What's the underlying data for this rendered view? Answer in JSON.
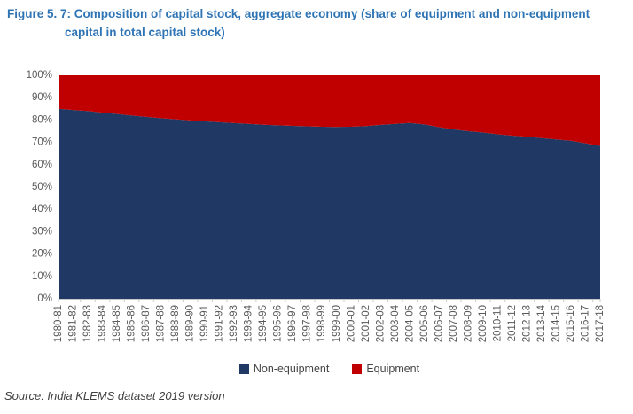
{
  "title": "Figure 5. 7: Composition of capital stock, aggregate economy (share of equipment and non-equipment capital in total capital stock)",
  "source": "Source: India KLEMS dataset 2019 version",
  "colors": {
    "title_blue": "#2E74B5",
    "non_equipment": "#1F3864",
    "equipment": "#C00000",
    "axis_text": "#595959",
    "axis_line": "#C9C9C9",
    "legend_text": "#444444"
  },
  "legend": {
    "items": [
      {
        "label": "Non-equipment",
        "color": "#1F3864"
      },
      {
        "label": "Equipment",
        "color": "#C00000"
      }
    ]
  },
  "chart_data": {
    "type": "area",
    "stacked": true,
    "stack_total": 100,
    "title": "Composition of capital stock, aggregate economy",
    "xlabel": "",
    "ylabel": "",
    "ylim": [
      0,
      100
    ],
    "grid": false,
    "legend_position": "bottom",
    "y_ticks": [
      "0%",
      "10%",
      "20%",
      "30%",
      "40%",
      "50%",
      "60%",
      "70%",
      "80%",
      "90%",
      "100%"
    ],
    "y_tick_values": [
      0,
      10,
      20,
      30,
      40,
      50,
      60,
      70,
      80,
      90,
      100
    ],
    "categories": [
      "1980-81",
      "1981-82",
      "1982-83",
      "1983-84",
      "1984-85",
      "1985-86",
      "1986-87",
      "1987-88",
      "1988-89",
      "1989-90",
      "1990-91",
      "1991-92",
      "1992-93",
      "1993-94",
      "1994-95",
      "1995-96",
      "1996-97",
      "1997-98",
      "1998-99",
      "1999-00",
      "2000-01",
      "2001-02",
      "2002-03",
      "2003-04",
      "2004-05",
      "2005-06",
      "2006-07",
      "2007-08",
      "2008-09",
      "2009-10",
      "2010-11",
      "2011-12",
      "2012-13",
      "2013-14",
      "2014-15",
      "2015-16",
      "2016-17",
      "2017-18"
    ],
    "series": [
      {
        "name": "Non-equipment",
        "color": "#1F3864",
        "values": [
          85.0,
          84.5,
          84.0,
          83.3,
          82.7,
          82.0,
          81.4,
          80.8,
          80.3,
          79.8,
          79.4,
          79.0,
          78.6,
          78.3,
          77.9,
          77.6,
          77.4,
          77.2,
          77.0,
          76.9,
          77.0,
          77.3,
          77.8,
          78.3,
          78.7,
          78.0,
          76.8,
          75.8,
          75.0,
          74.4,
          73.6,
          73.0,
          72.5,
          71.9,
          71.3,
          70.7,
          69.6,
          68.4
        ]
      },
      {
        "name": "Equipment",
        "color": "#C00000",
        "values": [
          15.0,
          15.5,
          16.0,
          16.7,
          17.3,
          18.0,
          18.6,
          19.2,
          19.7,
          20.2,
          20.6,
          21.0,
          21.4,
          21.7,
          22.1,
          22.4,
          22.6,
          22.8,
          23.0,
          23.1,
          23.0,
          22.7,
          22.2,
          21.7,
          21.3,
          22.0,
          23.2,
          24.2,
          25.0,
          25.6,
          26.4,
          27.0,
          27.5,
          28.1,
          28.7,
          29.3,
          30.4,
          31.6
        ]
      }
    ]
  }
}
